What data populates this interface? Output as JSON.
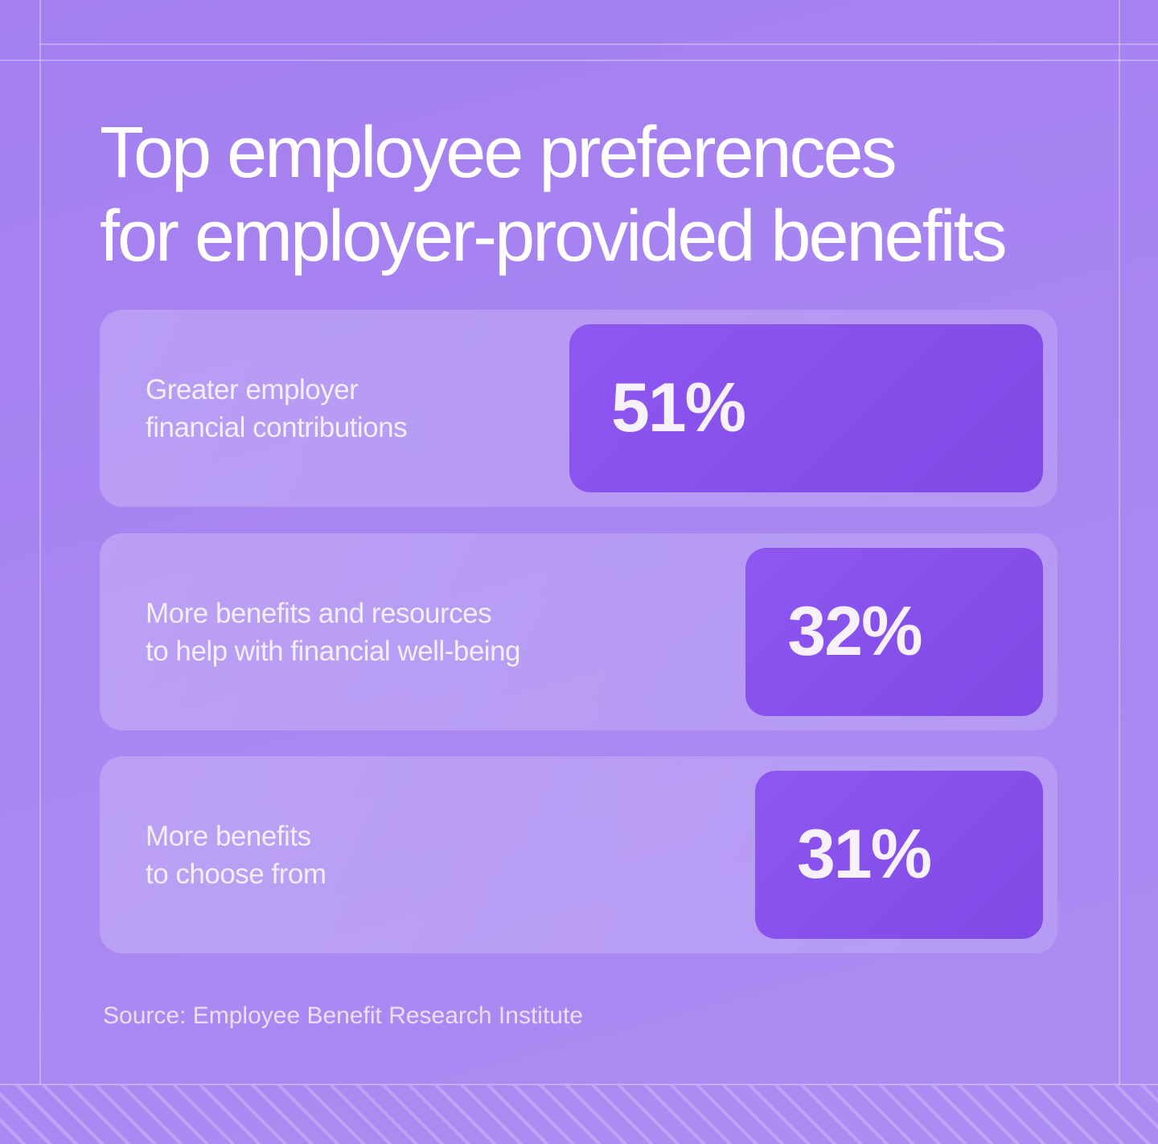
{
  "infographic": {
    "title_lines": [
      "Top employee preferences",
      "for employer-provided benefits"
    ],
    "source": "Source: Employee Benefit Research Institute"
  },
  "chart_data": {
    "type": "bar",
    "orientation": "horizontal",
    "bar_anchor": "right",
    "title": "Top employee preferences for employer-provided benefits",
    "categories": [
      "Greater employer financial contributions",
      "More benefits and resources to help with financial well-being",
      "More benefits to choose from"
    ],
    "values": [
      51,
      32,
      31
    ],
    "value_labels": [
      "51%",
      "32%",
      "31%"
    ],
    "unit": "percent",
    "xlim": [
      0,
      100
    ],
    "grid": false,
    "legend": false,
    "source": "Source: Employee Benefit Research Institute"
  },
  "rows": [
    {
      "label_lines": [
        "Greater employer",
        "financial contributions"
      ],
      "value": 51,
      "value_label": "51%"
    },
    {
      "label_lines": [
        "More benefits and resources",
        "to help with financial well-being"
      ],
      "value": 32,
      "value_label": "32%"
    },
    {
      "label_lines": [
        "More benefits",
        "to choose from"
      ],
      "value": 31,
      "value_label": "31%"
    }
  ],
  "colors": {
    "background": "#a886f1",
    "card": "rgba(255,255,255,0.17)",
    "bar": "#8750ec",
    "title_text": "#ffffff",
    "label_text": "#f4edfe",
    "value_text": "#f7f1fc",
    "source_text": "#ecdef9",
    "frame_line": "rgba(255,255,255,0.30)"
  }
}
